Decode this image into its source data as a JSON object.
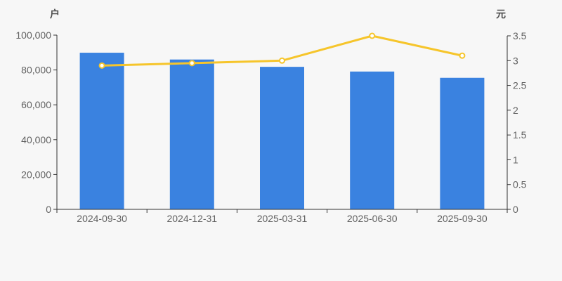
{
  "page": {
    "background": "#f7f7f7"
  },
  "chart_data": {
    "type": "combo",
    "categories": [
      "2024-09-30",
      "2024-12-31",
      "2025-03-31",
      "2025-06-30",
      "2025-09-30"
    ],
    "series": [
      {
        "name": "户",
        "type": "bar",
        "axis": "left",
        "color": "#3a82e0",
        "values": [
          89900,
          86000,
          81800,
          79100,
          75500
        ]
      },
      {
        "name": "元",
        "type": "line",
        "axis": "right",
        "color": "#f6c52b",
        "marker_fill": "#ffffff",
        "values": [
          2.9,
          2.95,
          3.0,
          3.5,
          3.1
        ]
      }
    ],
    "left_axis": {
      "title": "户",
      "min": 0,
      "max": 100000,
      "step": 20000,
      "tick_labels": [
        "0",
        "20,000",
        "40,000",
        "60,000",
        "80,000",
        "100,000"
      ]
    },
    "right_axis": {
      "title": "元",
      "min": 0,
      "max": 3.5,
      "step": 0.5,
      "tick_labels": [
        "0",
        "0.5",
        "1",
        "1.5",
        "2",
        "2.5",
        "3",
        "3.5"
      ]
    },
    "grid": false,
    "legend": false,
    "colors": {
      "axis_line": "#333333",
      "tick_label": "#616161",
      "axis_title": "#4d4d4d"
    }
  }
}
